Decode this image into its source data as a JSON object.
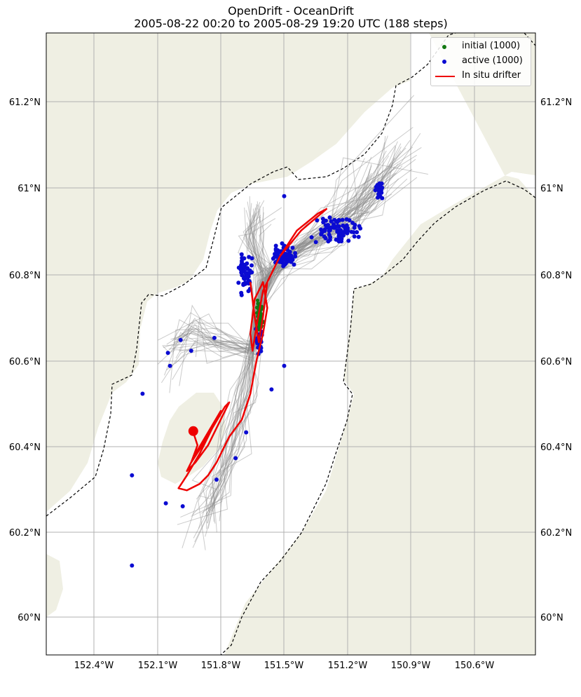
{
  "figure": {
    "title_line1": "OpenDrift - OceanDrift",
    "title_line2": "2005-08-22 00:20 to 2005-08-29 19:20 UTC (188 steps)"
  },
  "colors": {
    "land": "#efefe3",
    "sea": "#ffffff",
    "grid": "#b0b0b0",
    "trajectory": "#8c8c8c",
    "initial": "#127812",
    "active": "#0b0bd2",
    "drifter": "#ee0000",
    "boundary": "#000000"
  },
  "axes": {
    "lat_labels": [
      "61.2°N",
      "61°N",
      "60.8°N",
      "60.6°N",
      "60.4°N",
      "60.2°N",
      "60°N"
    ],
    "lon_labels": [
      "152.4°W",
      "152.1°W",
      "151.8°W",
      "151.5°W",
      "151.2°W",
      "150.9°W",
      "150.6°W"
    ]
  },
  "legend": {
    "items": [
      {
        "label": "initial (1000)",
        "type": "dot",
        "color": "#127812"
      },
      {
        "label": "active (1000)",
        "type": "dot",
        "color": "#0b0bd2"
      },
      {
        "label": "In situ drifter",
        "type": "line",
        "color": "#ee0000"
      }
    ]
  },
  "chart_data": {
    "type": "map",
    "title": "OpenDrift - OceanDrift",
    "subtitle": "2005-08-22 00:20 to 2005-08-29 19:20 UTC (188 steps)",
    "lon_ticks": [
      -152.4,
      -152.1,
      -151.8,
      -151.5,
      -151.2,
      -150.9,
      -150.6
    ],
    "lat_ticks": [
      61.2,
      61.0,
      60.8,
      60.6,
      60.4,
      60.2,
      60.0
    ],
    "lon_range": [
      -152.62,
      -150.34
    ],
    "lat_range": [
      59.86,
      61.35
    ],
    "drifter_track": [
      [
        -151.66,
        60.78
      ],
      [
        -151.64,
        60.7
      ],
      [
        -151.62,
        60.64
      ],
      [
        -151.6,
        60.7
      ],
      [
        -151.58,
        60.78
      ],
      [
        -151.52,
        60.84
      ],
      [
        -151.44,
        60.9
      ],
      [
        -151.34,
        60.94
      ],
      [
        -151.3,
        60.95
      ],
      [
        -151.42,
        60.9
      ],
      [
        -151.52,
        60.84
      ],
      [
        -151.6,
        60.76
      ],
      [
        -151.63,
        60.68
      ],
      [
        -151.65,
        60.62
      ],
      [
        -151.66,
        60.66
      ],
      [
        -151.64,
        60.74
      ],
      [
        -151.6,
        60.78
      ],
      [
        -151.58,
        60.72
      ],
      [
        -151.6,
        60.66
      ],
      [
        -151.63,
        60.6
      ],
      [
        -151.66,
        60.52
      ],
      [
        -151.7,
        60.46
      ],
      [
        -151.76,
        60.42
      ],
      [
        -151.82,
        60.36
      ],
      [
        -151.86,
        60.33
      ],
      [
        -151.9,
        60.31
      ],
      [
        -151.96,
        60.295
      ],
      [
        -152.0,
        60.3
      ],
      [
        -151.96,
        60.33
      ],
      [
        -151.9,
        60.38
      ],
      [
        -151.84,
        60.44
      ],
      [
        -151.78,
        60.49
      ],
      [
        -151.76,
        60.5
      ],
      [
        -151.8,
        60.46
      ],
      [
        -151.86,
        60.4
      ],
      [
        -151.92,
        60.36
      ],
      [
        -151.96,
        60.34
      ],
      [
        -151.92,
        60.38
      ],
      [
        -151.86,
        60.43
      ],
      [
        -151.8,
        60.48
      ],
      [
        -151.84,
        60.44
      ],
      [
        -151.9,
        60.39
      ],
      [
        -151.94,
        60.36
      ],
      [
        -151.91,
        60.4
      ],
      [
        -151.93,
        60.43
      ]
    ],
    "drifter_end": [
      -151.93,
      60.433
    ]
  }
}
